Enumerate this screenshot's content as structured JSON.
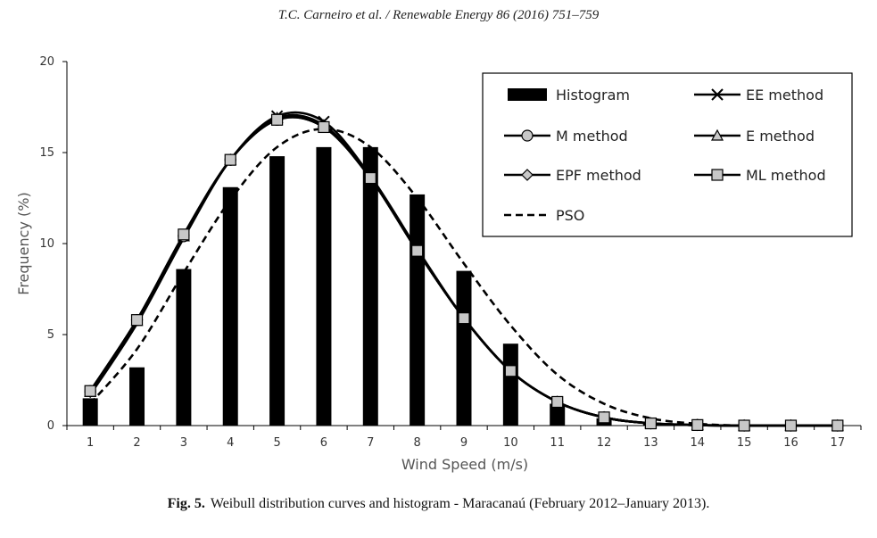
{
  "header": {
    "running_head": "T.C. Carneiro et al. / Renewable Energy 86 (2016) 751–759"
  },
  "caption": {
    "label": "Fig. 5.",
    "text": "Weibull distribution curves and histogram - Maracanaú (February 2012–January 2013)."
  },
  "chart_data": {
    "type": "bar",
    "title": "",
    "xlabel": "Wind Speed (m/s)",
    "ylabel": "Frequency (%)",
    "ylim": [
      0,
      20
    ],
    "yticks": [
      0,
      5,
      10,
      15,
      20
    ],
    "grid": false,
    "legend_position": "top-right",
    "categories": [
      "1",
      "2",
      "3",
      "4",
      "5",
      "6",
      "7",
      "8",
      "9",
      "10",
      "11",
      "12",
      "13",
      "14",
      "15",
      "16",
      "17"
    ],
    "histogram": {
      "name": "Histogram",
      "values": [
        1.5,
        3.2,
        8.6,
        13.1,
        14.8,
        15.3,
        15.3,
        12.7,
        8.5,
        4.5,
        1.2,
        0.4,
        0.1,
        0.0,
        0.0,
        0.0,
        0.0
      ]
    },
    "series": [
      {
        "name": "EE method",
        "marker": "x",
        "dash": false,
        "values": [
          1.7,
          5.6,
          10.3,
          14.6,
          17.0,
          16.7,
          13.7,
          9.7,
          5.9,
          3.0,
          1.3,
          0.45,
          0.13,
          0.03,
          0.0,
          0.0,
          0.0
        ]
      },
      {
        "name": "M method",
        "marker": "circle",
        "dash": false,
        "values": [
          1.9,
          5.8,
          10.4,
          14.6,
          16.8,
          16.4,
          13.6,
          9.6,
          5.9,
          3.0,
          1.3,
          0.45,
          0.12,
          0.03,
          0.0,
          0.0,
          0.0
        ]
      },
      {
        "name": "E method",
        "marker": "triangle",
        "dash": false,
        "values": [
          1.85,
          5.75,
          10.4,
          14.6,
          16.9,
          16.5,
          13.6,
          9.6,
          5.9,
          3.0,
          1.3,
          0.45,
          0.12,
          0.03,
          0.0,
          0.0,
          0.0
        ]
      },
      {
        "name": "EPF method",
        "marker": "diamond",
        "dash": false,
        "values": [
          1.85,
          5.8,
          10.45,
          14.6,
          16.85,
          16.45,
          13.6,
          9.6,
          5.9,
          3.0,
          1.3,
          0.45,
          0.12,
          0.03,
          0.0,
          0.0,
          0.0
        ]
      },
      {
        "name": "ML method",
        "marker": "square",
        "dash": false,
        "values": [
          1.9,
          5.8,
          10.5,
          14.6,
          16.8,
          16.4,
          13.6,
          9.6,
          5.9,
          3.0,
          1.3,
          0.45,
          0.12,
          0.03,
          0.0,
          0.0,
          0.0
        ]
      },
      {
        "name": "PSO",
        "marker": "none",
        "dash": true,
        "values": [
          1.2,
          4.2,
          8.4,
          12.4,
          15.3,
          16.3,
          15.3,
          12.5,
          8.9,
          5.5,
          2.8,
          1.2,
          0.4,
          0.1,
          0.0,
          0.0,
          0.0
        ]
      }
    ],
    "colors": {
      "bars": "#000000",
      "lines": "#000000",
      "marker_fill": "#c8c8c8",
      "axis": "#000000",
      "legend_border": "#000000"
    }
  }
}
